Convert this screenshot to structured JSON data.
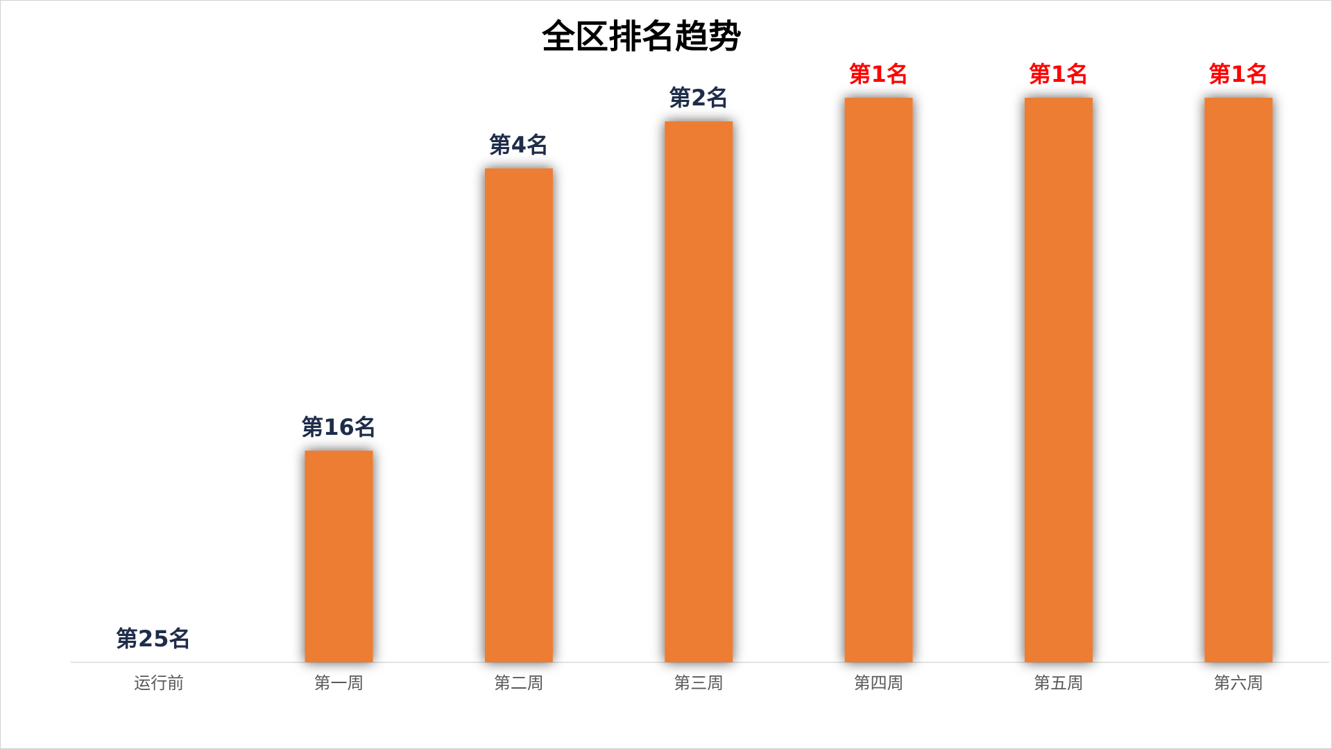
{
  "chart_data": {
    "type": "bar",
    "title": "全区排名趋势",
    "categories": [
      "运行前",
      "第一周",
      "第二周",
      "第三周",
      "第四周",
      "第五周",
      "第六周"
    ],
    "values": [
      25,
      16,
      4,
      2,
      1,
      1,
      1
    ],
    "value_labels": [
      "第25名",
      "第16名",
      "第4名",
      "第2名",
      "第1名",
      "第1名",
      "第1名"
    ],
    "label_colors": [
      "#1f2d4a",
      "#1f2d4a",
      "#1f2d4a",
      "#1f2d4a",
      "#ff0000",
      "#ff0000",
      "#ff0000"
    ],
    "color": "#ed7d31",
    "ylim": [
      25,
      1
    ]
  }
}
